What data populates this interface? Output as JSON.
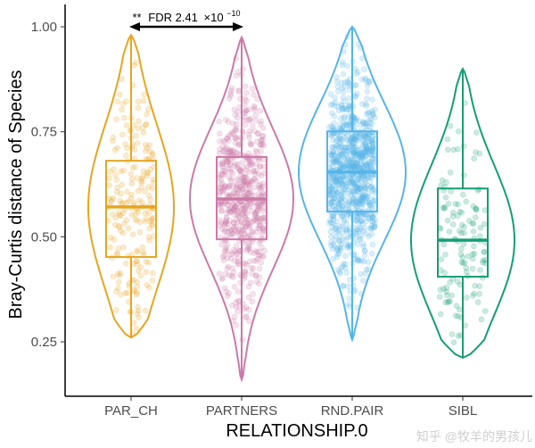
{
  "chart_data": {
    "type": "violin",
    "xlabel": "RELATIONSHIP.0",
    "ylabel": "Bray-Curtis distance of Species",
    "ylim": [
      0.123,
      1.05
    ],
    "yticks": [
      {
        "value": 0.25,
        "label": "0.25"
      },
      {
        "value": 0.5,
        "label": "0.50"
      },
      {
        "value": 0.75,
        "label": "0.75"
      },
      {
        "value": 1.0,
        "label": "1.00"
      }
    ],
    "grid": false,
    "legend": "none",
    "categories": [
      "PAR_CH",
      "PARTNERS",
      "RND.PAIR",
      "SIBL"
    ],
    "series": [
      {
        "category": "PAR_CH",
        "color": "#E6A520",
        "min": 0.26,
        "q1": 0.452,
        "median": 0.571,
        "q3": 0.681,
        "max": 0.98
      },
      {
        "category": "PARTNERS",
        "color": "#CC79A7",
        "min": 0.16,
        "q1": 0.494,
        "median": 0.59,
        "q3": 0.69,
        "max": 0.975
      },
      {
        "category": "RND.PAIR",
        "color": "#56B4E9",
        "min": 0.255,
        "q1": 0.56,
        "median": 0.654,
        "q3": 0.751,
        "max": 1.0
      },
      {
        "category": "SIBL",
        "color": "#159E76",
        "min": 0.212,
        "q1": 0.405,
        "median": 0.492,
        "q3": 0.615,
        "max": 0.9
      }
    ],
    "annotation": {
      "from": "PAR_CH",
      "to": "PARTNERS",
      "y": 1.0,
      "stars": "**",
      "label": "FDR 2.41",
      "times": "×10",
      "exponent": "−10"
    }
  },
  "watermark": "知乎 @牧羊的男孩儿"
}
